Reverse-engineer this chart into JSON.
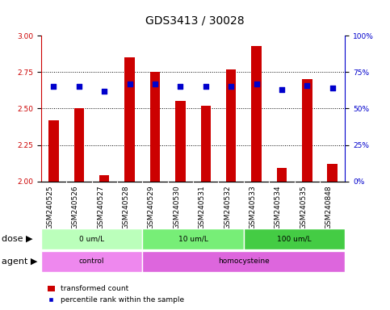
{
  "title": "GDS3413 / 30028",
  "samples": [
    "GSM240525",
    "GSM240526",
    "GSM240527",
    "GSM240528",
    "GSM240529",
    "GSM240530",
    "GSM240531",
    "GSM240532",
    "GSM240533",
    "GSM240534",
    "GSM240535",
    "GSM240848"
  ],
  "transformed_count": [
    2.42,
    2.5,
    2.04,
    2.85,
    2.75,
    2.55,
    2.52,
    2.77,
    2.93,
    2.09,
    2.7,
    2.12
  ],
  "percentile_rank": [
    65,
    65,
    62,
    67,
    67,
    65,
    65,
    65,
    67,
    63,
    66,
    64
  ],
  "ylim_left": [
    2.0,
    3.0
  ],
  "ylim_right": [
    0,
    100
  ],
  "yticks_left": [
    2.0,
    2.25,
    2.5,
    2.75,
    3.0
  ],
  "yticks_right": [
    0,
    25,
    50,
    75,
    100
  ],
  "ytick_labels_right": [
    "0%",
    "25%",
    "50%",
    "75%",
    "100%"
  ],
  "hgrid_ticks": [
    2.25,
    2.5,
    2.75
  ],
  "bar_color": "#cc0000",
  "dot_color": "#0000cc",
  "bar_width": 0.4,
  "dose_groups": [
    {
      "label": "0 um/L",
      "start": 0,
      "end": 4,
      "color": "#bbffbb"
    },
    {
      "label": "10 um/L",
      "start": 4,
      "end": 8,
      "color": "#77ee77"
    },
    {
      "label": "100 um/L",
      "start": 8,
      "end": 12,
      "color": "#44cc44"
    }
  ],
  "agent_groups": [
    {
      "label": "control",
      "start": 0,
      "end": 4,
      "color": "#ee88ee"
    },
    {
      "label": "homocysteine",
      "start": 4,
      "end": 12,
      "color": "#dd66dd"
    }
  ],
  "dose_label": "dose",
  "agent_label": "agent",
  "legend_bar_label": "transformed count",
  "legend_dot_label": "percentile rank within the sample",
  "bg_color": "#ffffff",
  "xtick_bg_color": "#cccccc",
  "xtick_sep_color": "#ffffff",
  "axis_color_left": "#cc0000",
  "axis_color_right": "#0000cc",
  "title_fontsize": 10,
  "tick_fontsize": 6.5,
  "label_fontsize": 8
}
